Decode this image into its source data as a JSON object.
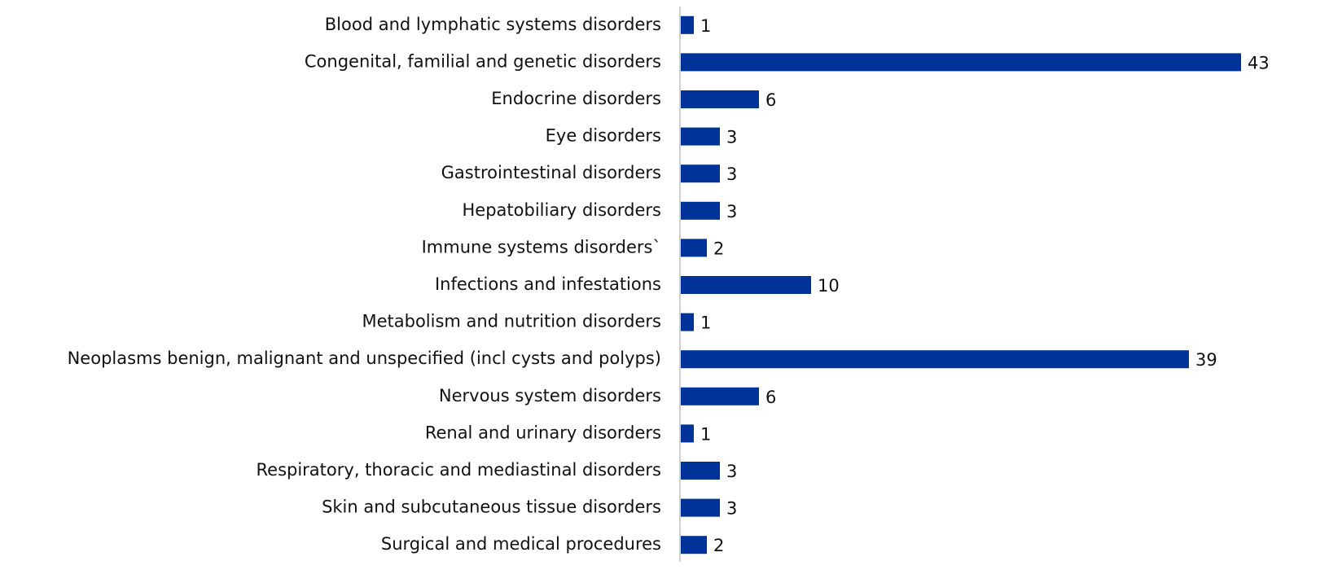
{
  "chart_data": {
    "type": "barh",
    "categories": [
      "Blood and lymphatic systems disorders",
      "Congenital, familial and genetic disorders",
      "Endocrine disorders",
      "Eye disorders",
      "Gastrointestinal disorders",
      "Hepatobiliary disorders",
      "Immune systems disorders`",
      "Infections and infestations",
      "Metabolism and nutrition disorders",
      "Neoplasms benign, malignant and unspecified (incl cysts and polyps)",
      "Nervous system disorders",
      "Renal and urinary disorders",
      "Respiratory, thoracic and mediastinal disorders",
      "Skin and subcutaneous tissue disorders",
      "Surgical and medical procedures"
    ],
    "values": [
      1,
      43,
      6,
      3,
      3,
      3,
      2,
      10,
      1,
      39,
      6,
      1,
      3,
      3,
      2
    ],
    "color": "#003399"
  }
}
